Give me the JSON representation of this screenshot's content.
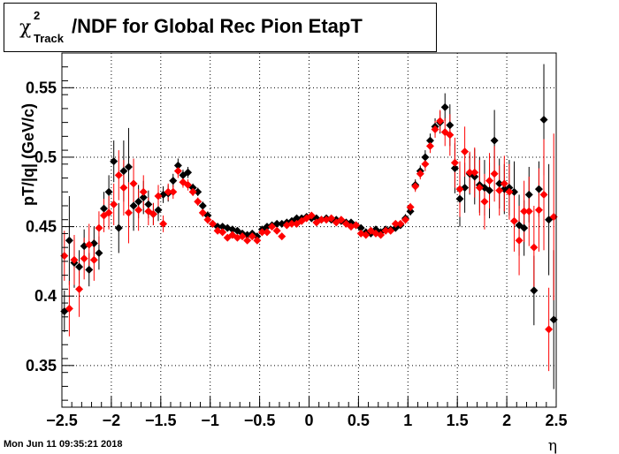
{
  "title": {
    "chi": "χ",
    "sup": "2",
    "sub": "Track",
    "rest": "/NDF for Global Rec Pion EtapT"
  },
  "datestamp": "Mon Jun 11 09:35:21 2018",
  "chart_data": {
    "type": "scatter",
    "title": "χ²Track/NDF for Global Rec Pion EtapT",
    "xlabel": "η",
    "ylabel": "pT/|q| (GeV/c)",
    "xlim": [
      -2.5,
      2.5
    ],
    "ylim": [
      0.32,
      0.575
    ],
    "xticks": [
      -2.5,
      -2,
      -1.5,
      -1,
      -0.5,
      0,
      0.5,
      1,
      1.5,
      2,
      2.5
    ],
    "xtick_labels": [
      "−2.5",
      "−2",
      "−1.5",
      "−1",
      "−0.5",
      "0",
      "0.5",
      "1",
      "1.5",
      "2",
      "2.5"
    ],
    "yticks": [
      0.35,
      0.4,
      0.45,
      0.5,
      0.55
    ],
    "ytick_labels": [
      "0.35",
      "0.4",
      "0.45",
      "0.5",
      "0.55"
    ],
    "grid": true,
    "legend": "none",
    "series": [
      {
        "color": "#000000",
        "x": [
          -2.475,
          -2.425,
          -2.375,
          -2.325,
          -2.275,
          -2.225,
          -2.175,
          -2.125,
          -2.075,
          -2.025,
          -1.975,
          -1.925,
          -1.875,
          -1.825,
          -1.775,
          -1.725,
          -1.675,
          -1.625,
          -1.575,
          -1.525,
          -1.475,
          -1.425,
          -1.375,
          -1.325,
          -1.275,
          -1.225,
          -1.175,
          -1.125,
          -1.075,
          -1.025,
          -0.975,
          -0.925,
          -0.875,
          -0.825,
          -0.775,
          -0.725,
          -0.675,
          -0.625,
          -0.575,
          -0.525,
          -0.475,
          -0.425,
          -0.375,
          -0.325,
          -0.275,
          -0.225,
          -0.175,
          -0.125,
          -0.075,
          -0.025,
          0.025,
          0.075,
          0.125,
          0.175,
          0.225,
          0.275,
          0.325,
          0.375,
          0.425,
          0.475,
          0.525,
          0.575,
          0.625,
          0.675,
          0.725,
          0.775,
          0.825,
          0.875,
          0.925,
          0.975,
          1.025,
          1.075,
          1.125,
          1.175,
          1.225,
          1.275,
          1.325,
          1.375,
          1.425,
          1.475,
          1.525,
          1.575,
          1.625,
          1.675,
          1.725,
          1.775,
          1.825,
          1.875,
          1.925,
          1.975,
          2.025,
          2.075,
          2.125,
          2.175,
          2.225,
          2.275,
          2.325,
          2.375,
          2.425,
          2.475
        ],
        "y": [
          0.389,
          0.44,
          0.424,
          0.421,
          0.436,
          0.419,
          0.438,
          0.431,
          0.463,
          0.475,
          0.497,
          0.449,
          0.49,
          0.493,
          0.465,
          0.468,
          0.471,
          0.466,
          0.459,
          0.462,
          0.473,
          0.474,
          0.483,
          0.494,
          0.487,
          0.489,
          0.478,
          0.475,
          0.465,
          0.458,
          0.452,
          0.45,
          0.45,
          0.449,
          0.448,
          0.447,
          0.445,
          0.444,
          0.445,
          0.443,
          0.448,
          0.45,
          0.451,
          0.452,
          0.452,
          0.453,
          0.454,
          0.456,
          0.456,
          0.457,
          0.456,
          0.456,
          0.455,
          0.456,
          0.455,
          0.455,
          0.454,
          0.453,
          0.453,
          0.451,
          0.449,
          0.446,
          0.445,
          0.448,
          0.446,
          0.448,
          0.448,
          0.449,
          0.451,
          0.456,
          0.461,
          0.48,
          0.49,
          0.5,
          0.512,
          0.522,
          0.525,
          0.536,
          0.523,
          0.492,
          0.47,
          0.478,
          0.488,
          0.486,
          0.48,
          0.478,
          0.476,
          0.512,
          0.481,
          0.477,
          0.478,
          0.475,
          0.451,
          0.449,
          0.473,
          0.404,
          0.477,
          0.527,
          0.455,
          0.383
        ],
        "yerr": [
          0.015,
          0.032,
          0.018,
          0.012,
          0.012,
          0.012,
          0.012,
          0.012,
          0.012,
          0.012,
          0.015,
          0.018,
          0.022,
          0.028,
          0.018,
          0.012,
          0.012,
          0.01,
          0.008,
          0.008,
          0.006,
          0.006,
          0.005,
          0.005,
          0.004,
          0.004,
          0.003,
          0.003,
          0.003,
          0.003,
          0.002,
          0.002,
          0.002,
          0.002,
          0.002,
          0.002,
          0.002,
          0.002,
          0.002,
          0.002,
          0.002,
          0.002,
          0.002,
          0.002,
          0.002,
          0.002,
          0.002,
          0.002,
          0.002,
          0.002,
          0.002,
          0.002,
          0.002,
          0.002,
          0.002,
          0.002,
          0.002,
          0.002,
          0.002,
          0.002,
          0.002,
          0.002,
          0.002,
          0.002,
          0.002,
          0.002,
          0.002,
          0.002,
          0.002,
          0.003,
          0.003,
          0.004,
          0.004,
          0.005,
          0.005,
          0.006,
          0.008,
          0.01,
          0.015,
          0.018,
          0.02,
          0.018,
          0.015,
          0.02,
          0.02,
          0.02,
          0.02,
          0.022,
          0.018,
          0.018,
          0.02,
          0.022,
          0.022,
          0.02,
          0.02,
          0.025,
          0.02,
          0.04,
          0.04,
          0.05
        ]
      },
      {
        "color": "#ff0000",
        "x": [
          -2.475,
          -2.425,
          -2.375,
          -2.325,
          -2.275,
          -2.225,
          -2.175,
          -2.125,
          -2.075,
          -2.025,
          -1.975,
          -1.925,
          -1.875,
          -1.825,
          -1.775,
          -1.725,
          -1.675,
          -1.625,
          -1.575,
          -1.525,
          -1.475,
          -1.425,
          -1.375,
          -1.325,
          -1.275,
          -1.225,
          -1.175,
          -1.125,
          -1.075,
          -1.025,
          -0.975,
          -0.925,
          -0.875,
          -0.825,
          -0.775,
          -0.725,
          -0.675,
          -0.625,
          -0.575,
          -0.525,
          -0.475,
          -0.425,
          -0.375,
          -0.325,
          -0.275,
          -0.225,
          -0.175,
          -0.125,
          -0.075,
          -0.025,
          0.025,
          0.075,
          0.125,
          0.175,
          0.225,
          0.275,
          0.325,
          0.375,
          0.425,
          0.475,
          0.525,
          0.575,
          0.625,
          0.675,
          0.725,
          0.775,
          0.825,
          0.875,
          0.925,
          0.975,
          1.025,
          1.075,
          1.125,
          1.175,
          1.225,
          1.275,
          1.325,
          1.375,
          1.425,
          1.475,
          1.525,
          1.575,
          1.625,
          1.675,
          1.725,
          1.775,
          1.825,
          1.875,
          1.925,
          1.975,
          2.025,
          2.075,
          2.125,
          2.175,
          2.225,
          2.275,
          2.325,
          2.375,
          2.425,
          2.475
        ],
        "y": [
          0.429,
          0.391,
          0.426,
          0.405,
          0.427,
          0.437,
          0.426,
          0.449,
          0.458,
          0.46,
          0.466,
          0.487,
          0.478,
          0.46,
          0.481,
          0.462,
          0.475,
          0.461,
          0.459,
          0.472,
          0.452,
          0.475,
          0.475,
          0.49,
          0.482,
          0.48,
          0.475,
          0.468,
          0.46,
          0.455,
          0.452,
          0.447,
          0.446,
          0.442,
          0.444,
          0.442,
          0.443,
          0.44,
          0.443,
          0.44,
          0.446,
          0.446,
          0.45,
          0.447,
          0.443,
          0.451,
          0.452,
          0.452,
          0.454,
          0.456,
          0.458,
          0.453,
          0.455,
          0.455,
          0.456,
          0.453,
          0.455,
          0.452,
          0.45,
          0.451,
          0.445,
          0.444,
          0.447,
          0.445,
          0.444,
          0.447,
          0.447,
          0.452,
          0.452,
          0.455,
          0.464,
          0.479,
          0.488,
          0.495,
          0.508,
          0.52,
          0.526,
          0.518,
          0.516,
          0.496,
          0.477,
          0.504,
          0.489,
          0.489,
          0.478,
          0.468,
          0.483,
          0.488,
          0.476,
          0.481,
          0.475,
          0.454,
          0.44,
          0.461,
          0.461,
          0.435,
          0.462,
          0.473,
          0.376,
          0.457
        ],
        "yerr": [
          0.018,
          0.02,
          0.018,
          0.02,
          0.015,
          0.015,
          0.015,
          0.012,
          0.012,
          0.012,
          0.015,
          0.018,
          0.02,
          0.022,
          0.018,
          0.015,
          0.012,
          0.01,
          0.008,
          0.008,
          0.006,
          0.006,
          0.005,
          0.005,
          0.004,
          0.004,
          0.003,
          0.003,
          0.003,
          0.003,
          0.002,
          0.002,
          0.002,
          0.002,
          0.002,
          0.002,
          0.002,
          0.002,
          0.002,
          0.002,
          0.002,
          0.002,
          0.002,
          0.002,
          0.002,
          0.002,
          0.002,
          0.002,
          0.002,
          0.002,
          0.002,
          0.002,
          0.002,
          0.002,
          0.002,
          0.002,
          0.002,
          0.002,
          0.002,
          0.002,
          0.002,
          0.002,
          0.002,
          0.002,
          0.002,
          0.002,
          0.002,
          0.002,
          0.002,
          0.003,
          0.003,
          0.004,
          0.004,
          0.005,
          0.005,
          0.006,
          0.008,
          0.01,
          0.015,
          0.018,
          0.02,
          0.018,
          0.015,
          0.018,
          0.02,
          0.02,
          0.02,
          0.02,
          0.018,
          0.02,
          0.02,
          0.022,
          0.025,
          0.022,
          0.025,
          0.03,
          0.03,
          0.04,
          0.03,
          0.06
        ]
      }
    ]
  }
}
